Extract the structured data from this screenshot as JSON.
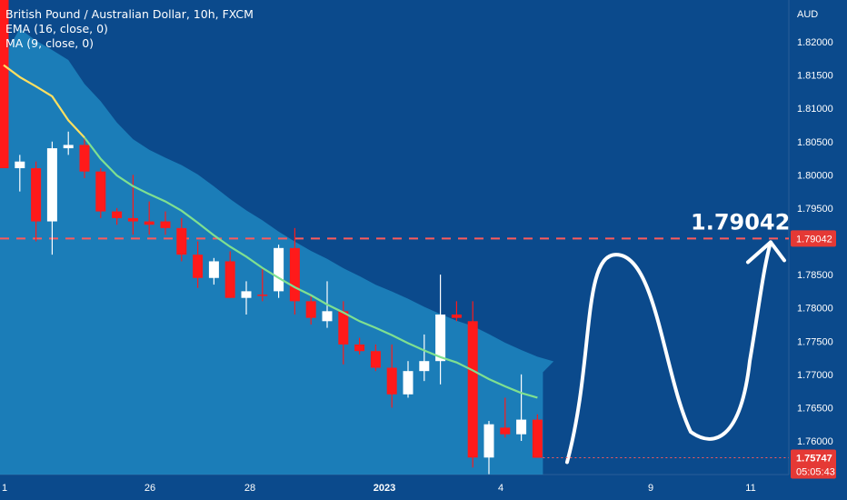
{
  "header": {
    "title": "British Pound / Australian Dollar, 10h, FXCM",
    "indicators": [
      "EMA (16, close, 0)",
      "MA (9, close, 0)"
    ]
  },
  "colors": {
    "background": "#0b4a8c",
    "area_fill": "#1e86c0",
    "candle_up": "#ffffff",
    "candle_down": "#ff1a1a",
    "ema_line": "#ffe060",
    "ma_line": "#7fe090",
    "target_line": "#ff5a5a",
    "path_arrow": "#ffffff"
  },
  "chart_data": {
    "type": "candlestick",
    "symbol": "GBPAUD",
    "timeframe": "10h",
    "currency": "AUD",
    "y_range": [
      1.754,
      1.825
    ],
    "yticks": [
      "1.82000",
      "1.81500",
      "1.81000",
      "1.80500",
      "1.80000",
      "1.79500",
      "1.79000",
      "1.78500",
      "1.78000",
      "1.77500",
      "1.77000",
      "1.76500",
      "1.76000"
    ],
    "xticks": [
      "1",
      "26",
      "28",
      "2023",
      "4",
      "9",
      "11"
    ],
    "candles": [
      {
        "o": 1.831,
        "h": 1.832,
        "l": 1.801,
        "c": 1.801
      },
      {
        "o": 1.801,
        "h": 1.803,
        "l": 1.7975,
        "c": 1.802
      },
      {
        "o": 1.801,
        "h": 1.802,
        "l": 1.79,
        "c": 1.793
      },
      {
        "o": 1.793,
        "h": 1.805,
        "l": 1.788,
        "c": 1.804
      },
      {
        "o": 1.804,
        "h": 1.8065,
        "l": 1.803,
        "c": 1.8045
      },
      {
        "o": 1.8045,
        "h": 1.8055,
        "l": 1.7995,
        "c": 1.8005
      },
      {
        "o": 1.8005,
        "h": 1.801,
        "l": 1.7935,
        "c": 1.7945
      },
      {
        "o": 1.7945,
        "h": 1.795,
        "l": 1.7925,
        "c": 1.7935
      },
      {
        "o": 1.7935,
        "h": 1.8,
        "l": 1.791,
        "c": 1.793
      },
      {
        "o": 1.793,
        "h": 1.796,
        "l": 1.791,
        "c": 1.7925
      },
      {
        "o": 1.793,
        "h": 1.7945,
        "l": 1.791,
        "c": 1.792
      },
      {
        "o": 1.792,
        "h": 1.7935,
        "l": 1.787,
        "c": 1.788
      },
      {
        "o": 1.788,
        "h": 1.79,
        "l": 1.783,
        "c": 1.7845
      },
      {
        "o": 1.7845,
        "h": 1.7875,
        "l": 1.7835,
        "c": 1.787
      },
      {
        "o": 1.787,
        "h": 1.7885,
        "l": 1.7815,
        "c": 1.7815
      },
      {
        "o": 1.7815,
        "h": 1.784,
        "l": 1.779,
        "c": 1.7825
      },
      {
        "o": 1.782,
        "h": 1.786,
        "l": 1.781,
        "c": 1.7818
      },
      {
        "o": 1.7825,
        "h": 1.7895,
        "l": 1.7815,
        "c": 1.789
      },
      {
        "o": 1.789,
        "h": 1.792,
        "l": 1.779,
        "c": 1.781
      },
      {
        "o": 1.781,
        "h": 1.782,
        "l": 1.7775,
        "c": 1.7785
      },
      {
        "o": 1.778,
        "h": 1.784,
        "l": 1.777,
        "c": 1.7795
      },
      {
        "o": 1.7795,
        "h": 1.781,
        "l": 1.7715,
        "c": 1.7745
      },
      {
        "o": 1.7745,
        "h": 1.7755,
        "l": 1.773,
        "c": 1.7735
      },
      {
        "o": 1.7735,
        "h": 1.7745,
        "l": 1.7705,
        "c": 1.771
      },
      {
        "o": 1.771,
        "h": 1.7745,
        "l": 1.765,
        "c": 1.767
      },
      {
        "o": 1.767,
        "h": 1.772,
        "l": 1.7665,
        "c": 1.7705
      },
      {
        "o": 1.7705,
        "h": 1.776,
        "l": 1.769,
        "c": 1.772
      },
      {
        "o": 1.772,
        "h": 1.785,
        "l": 1.7685,
        "c": 1.779
      },
      {
        "o": 1.779,
        "h": 1.781,
        "l": 1.778,
        "c": 1.7785
      },
      {
        "o": 1.778,
        "h": 1.781,
        "l": 1.756,
        "c": 1.7575
      },
      {
        "o": 1.7575,
        "h": 1.763,
        "l": 1.755,
        "c": 1.7625
      },
      {
        "o": 1.762,
        "h": 1.7665,
        "l": 1.7605,
        "c": 1.761
      },
      {
        "o": 1.761,
        "h": 1.77,
        "l": 1.76,
        "c": 1.7632
      },
      {
        "o": 1.7632,
        "h": 1.764,
        "l": 1.7575,
        "c": 1.75747
      }
    ],
    "ema": [
      1.8165,
      1.8147,
      1.8133,
      1.8118,
      1.8082,
      1.8056,
      1.8024,
      1.7999,
      1.7983,
      1.7971,
      1.796,
      1.7946,
      1.7928,
      1.7909,
      1.7892,
      1.7877,
      1.786,
      1.7845,
      1.7831,
      1.7819,
      1.7805,
      1.7793,
      1.778,
      1.777,
      1.7759,
      1.7747,
      1.7736,
      1.7726,
      1.7718,
      1.7706,
      1.7693,
      1.7682,
      1.7672,
      1.7665
    ],
    "price_level": {
      "value": 1.79042,
      "label": "1.79042"
    },
    "last_price": {
      "value": 1.75747,
      "label": "1.75747",
      "countdown": "05:05:43"
    },
    "projection": "rise to peak near 1.7880, retrace to trough near 1.7600, then rally to 1.79042 target"
  }
}
